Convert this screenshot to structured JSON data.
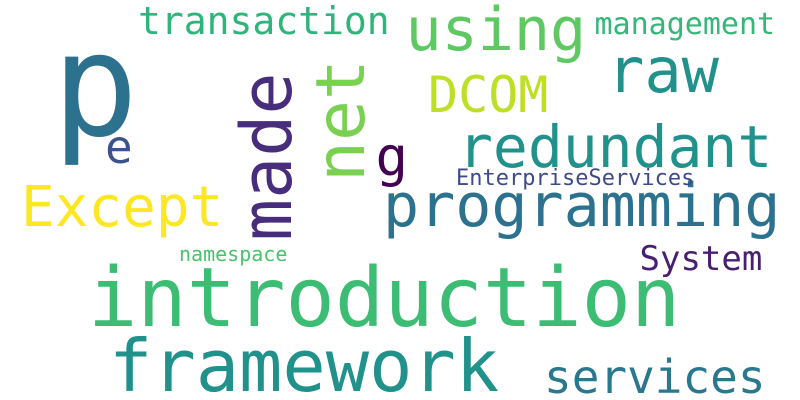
{
  "words": [
    {
      "key": "introduction",
      "text": "introduction",
      "color": "#3dbc74",
      "rotated": false
    },
    {
      "key": "p",
      "text": "p",
      "color": "#2c728e",
      "rotated": false
    },
    {
      "key": "framework",
      "text": "framework",
      "color": "#21918c",
      "rotated": false
    },
    {
      "key": "net",
      "text": "net",
      "color": "#7ad151",
      "rotated": true
    },
    {
      "key": "programming",
      "text": "programming",
      "color": "#2c728e",
      "rotated": false
    },
    {
      "key": "made",
      "text": "made",
      "color": "#472d7b",
      "rotated": true
    },
    {
      "key": "redundant",
      "text": "redundant",
      "color": "#21918c",
      "rotated": false
    },
    {
      "key": "raw",
      "text": "raw",
      "color": "#21918c",
      "rotated": false
    },
    {
      "key": "services",
      "text": "services",
      "color": "#2a788e",
      "rotated": false
    },
    {
      "key": "using",
      "text": "using",
      "color": "#5ec962",
      "rotated": false
    },
    {
      "key": "Except",
      "text": "Except",
      "color": "#fde725",
      "rotated": false
    },
    {
      "key": "DCOM",
      "text": "DCOM",
      "color": "#bddf26",
      "rotated": false
    },
    {
      "key": "transaction",
      "text": "transaction",
      "color": "#2fb47c",
      "rotated": false
    },
    {
      "key": "management",
      "text": "management",
      "color": "#35b779",
      "rotated": false
    },
    {
      "key": "e",
      "text": "e",
      "color": "#3b528b",
      "rotated": false
    },
    {
      "key": "g",
      "text": "g",
      "color": "#440154",
      "rotated": false
    },
    {
      "key": "System",
      "text": "System",
      "color": "#481f70",
      "rotated": false
    },
    {
      "key": "EnterpriseServices",
      "text": "EnterpriseServices",
      "color": "#3e4a89",
      "rotated": false
    },
    {
      "key": "namespace",
      "text": "namespace",
      "color": "#4ac16d",
      "rotated": false
    }
  ]
}
